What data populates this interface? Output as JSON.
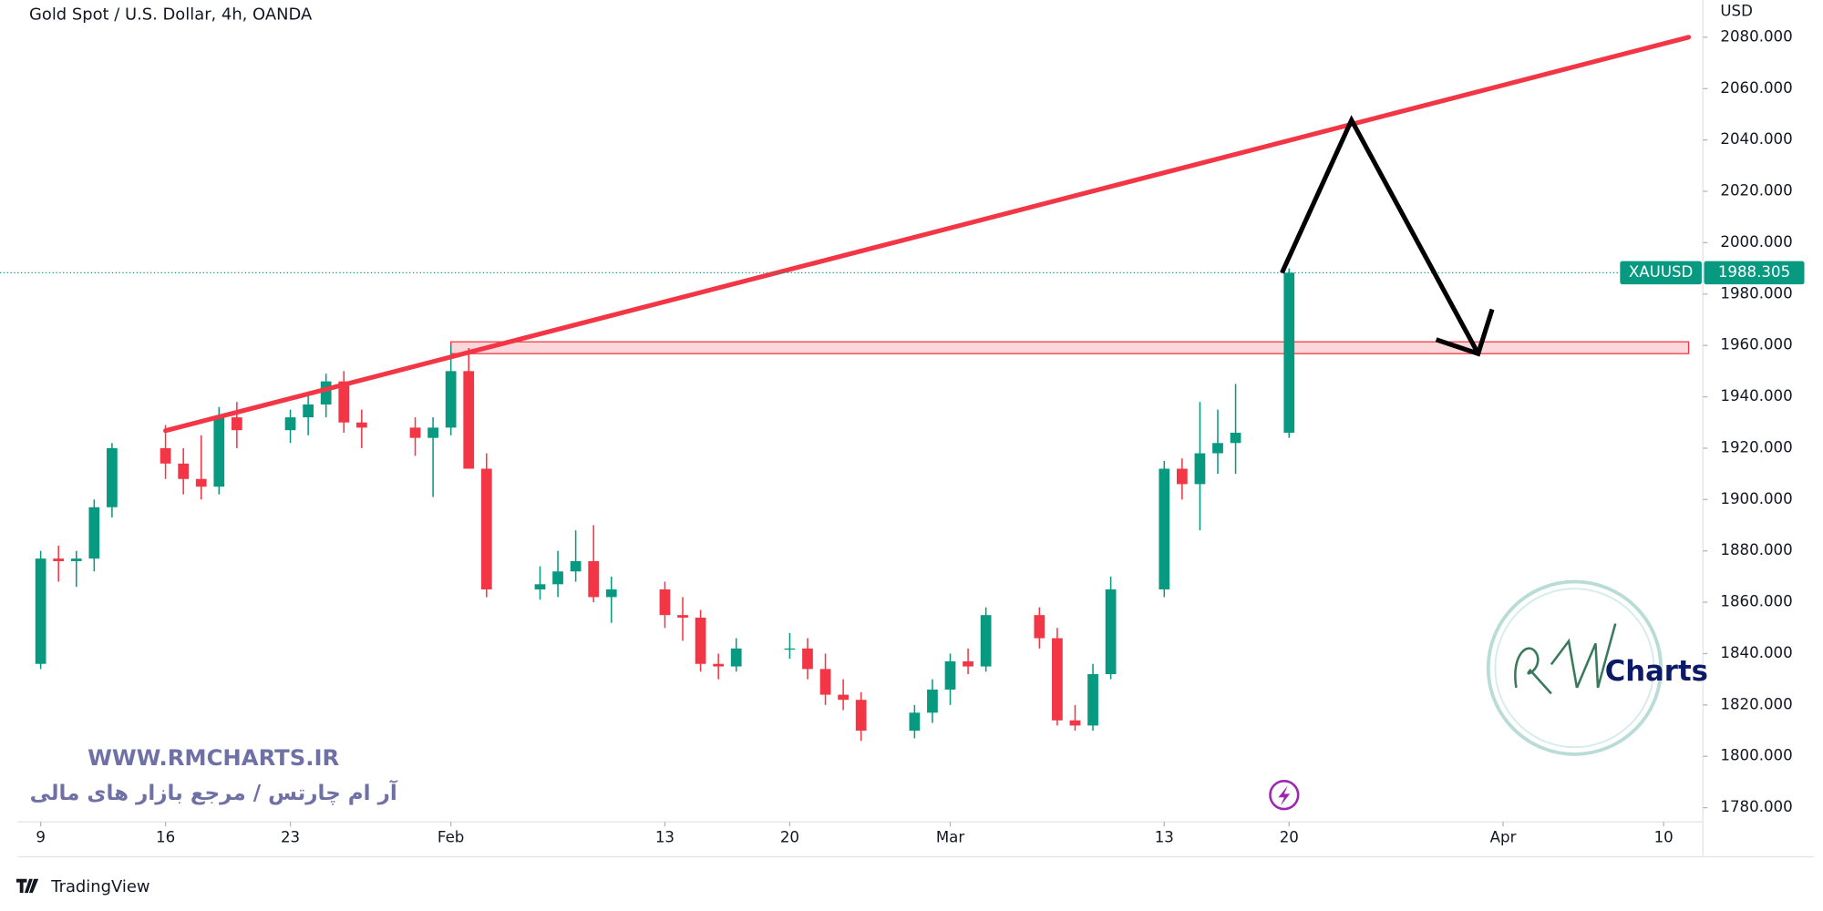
{
  "chart_data": {
    "type": "candlestick",
    "title": "Gold Spot / U.S. Dollar, 4h, OANDA",
    "y_unit": "USD",
    "up_color": "#089981",
    "down_color": "#f23645",
    "x": [
      9,
      10,
      11,
      12,
      13,
      16,
      17,
      18,
      19,
      20,
      23,
      24,
      25,
      26,
      27,
      30,
      31,
      32,
      33,
      34,
      37,
      38,
      39,
      40,
      41,
      44,
      45,
      46,
      47,
      48,
      51,
      52,
      53,
      54,
      55,
      58,
      59,
      60,
      61,
      62,
      65,
      66,
      67,
      68,
      69,
      72,
      73,
      74,
      75,
      76,
      79
    ],
    "open": [
      1836,
      1877,
      1876,
      1877,
      1897,
      1920,
      1914,
      1908,
      1905,
      1932,
      1927,
      1932,
      1937,
      1946,
      1930,
      1928,
      1924,
      1928,
      1950,
      1912,
      1865,
      1867,
      1872,
      1876,
      1862,
      1865,
      1855,
      1854,
      1836,
      1835,
      1842,
      1842,
      1834,
      1824,
      1822,
      1810,
      1817,
      1826,
      1837,
      1835,
      1855,
      1846,
      1814,
      1812,
      1832,
      1865,
      1912,
      1906,
      1918,
      1922,
      1926
    ],
    "high": [
      1880,
      1882,
      1880,
      1900,
      1922,
      1929,
      1920,
      1925,
      1936,
      1938,
      1935,
      1942,
      1949,
      1950,
      1935,
      1932,
      1932,
      1960,
      1959,
      1918,
      1874,
      1880,
      1888,
      1890,
      1870,
      1868,
      1862,
      1857,
      1840,
      1846,
      1848,
      1846,
      1840,
      1830,
      1825,
      1820,
      1830,
      1840,
      1842,
      1858,
      1858,
      1850,
      1820,
      1836,
      1870,
      1915,
      1916,
      1938,
      1935,
      1945,
      1990
    ],
    "low": [
      1834,
      1868,
      1866,
      1872,
      1893,
      1908,
      1902,
      1900,
      1902,
      1920,
      1922,
      1925,
      1932,
      1926,
      1920,
      1917,
      1901,
      1925,
      1913,
      1862,
      1861,
      1862,
      1868,
      1860,
      1852,
      1850,
      1845,
      1833,
      1830,
      1833,
      1838,
      1830,
      1820,
      1818,
      1806,
      1807,
      1813,
      1820,
      1832,
      1833,
      1842,
      1812,
      1810,
      1810,
      1830,
      1862,
      1900,
      1888,
      1910,
      1910,
      1924
    ],
    "close": [
      1877,
      1876,
      1877,
      1897,
      1920,
      1914,
      1908,
      1905,
      1932,
      1927,
      1932,
      1937,
      1946,
      1930,
      1928,
      1924,
      1928,
      1950,
      1912,
      1865,
      1867,
      1872,
      1876,
      1862,
      1865,
      1855,
      1854,
      1836,
      1835,
      1842,
      1842,
      1834,
      1824,
      1822,
      1810,
      1817,
      1826,
      1837,
      1835,
      1855,
      1846,
      1814,
      1812,
      1832,
      1865,
      1912,
      1906,
      1918,
      1922,
      1926,
      1988.305
    ],
    "xlim": [
      7.7,
      102.2
    ],
    "ylim": [
      1774.5,
      2094.5
    ],
    "xticks": [
      9,
      16,
      23,
      {
        "value": 32,
        "label": "Feb"
      },
      {
        "value": 44,
        "label": "13"
      },
      {
        "value": 51,
        "label": "20"
      },
      {
        "value": 60,
        "label": "Mar"
      },
      {
        "value": 72,
        "label": "13"
      },
      {
        "value": 79,
        "label": "20"
      },
      {
        "value": 91,
        "label": "Apr"
      },
      {
        "value": 100,
        "label": "10"
      }
    ],
    "yticks": [
      {
        "value": 1780,
        "label": "1780.000"
      },
      {
        "value": 1800,
        "label": "1800.000"
      },
      {
        "value": 1820,
        "label": "1820.000"
      },
      {
        "value": 1840,
        "label": "1840.000"
      },
      {
        "value": 1860,
        "label": "1860.000"
      },
      {
        "value": 1880,
        "label": "1880.000"
      },
      {
        "value": 1900,
        "label": "1900.000"
      },
      {
        "value": 1920,
        "label": "1920.000"
      },
      {
        "value": 1940,
        "label": "1940.000"
      },
      {
        "value": 1960,
        "label": "1960.000"
      },
      {
        "value": 1980,
        "label": "1980.000"
      },
      {
        "value": 2000,
        "label": "2000.000"
      },
      {
        "value": 2020,
        "label": "2020.000"
      },
      {
        "value": 2040,
        "label": "2040.000"
      },
      {
        "value": 2060,
        "label": "2060.000"
      },
      {
        "value": 2080,
        "label": "2080.000"
      }
    ],
    "last_price": {
      "symbol": "XAUUSD",
      "value": 1988.305,
      "value_label": "1988.305",
      "color": "#089981"
    },
    "trendline": {
      "color": "#f23645",
      "x": [
        16,
        101.4
      ],
      "y": [
        1926.8,
        2080
      ]
    },
    "zone": {
      "color": "#f23645",
      "x": [
        32,
        101.4
      ],
      "y": [
        1956.8,
        1961.4
      ]
    },
    "projection": {
      "color": "#000000",
      "x": [
        78.6,
        82.5,
        89.6
      ],
      "y": [
        1988.3,
        2047.7,
        1956.8
      ]
    }
  },
  "watermark": {
    "url": "WWW.RMCHARTS.IR",
    "tagline": "آر ام چارتس / مرجع بازار های مالی",
    "logo_text": "Charts"
  },
  "footer": {
    "brand": "TradingView"
  }
}
